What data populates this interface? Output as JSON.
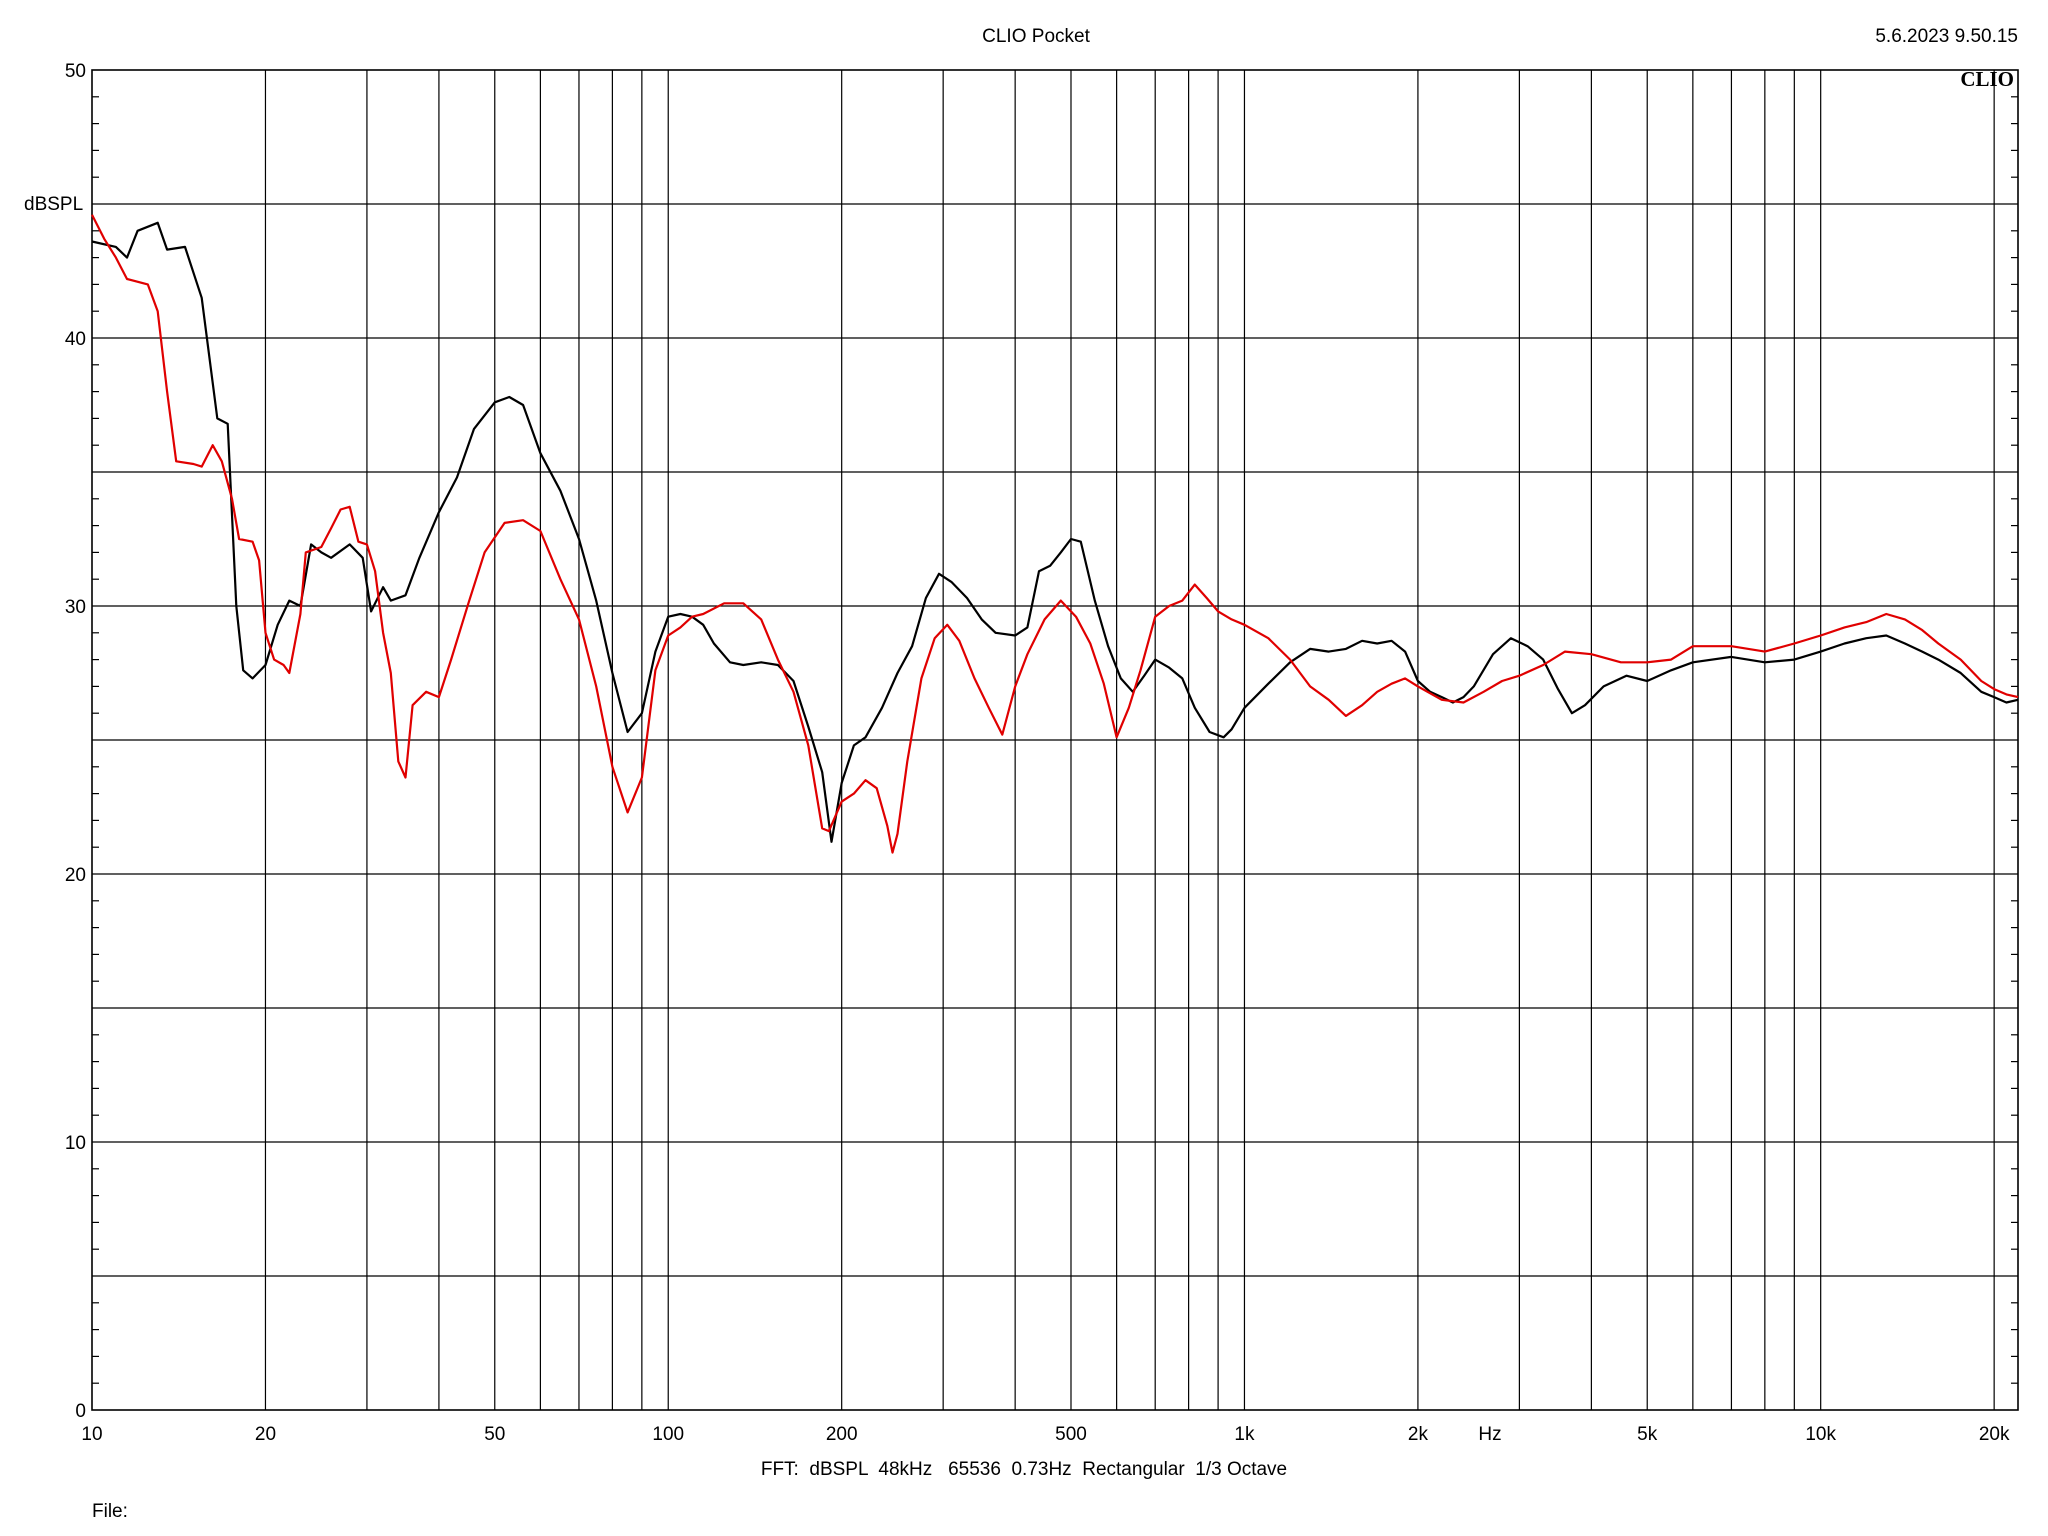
{
  "header": {
    "title": "CLIO Pocket",
    "timestamp": "5.6.2023 9.50.15",
    "logo": "CLIO"
  },
  "footer": {
    "settings": "FFT:  dBSPL  48kHz   65536  0.73Hz  Rectangular  1/3 Octave",
    "file_label": "File:"
  },
  "chart_data": {
    "type": "line",
    "ylabel": "dBSPL",
    "xlabel": "Hz",
    "x_scale": "log",
    "xlim": [
      10,
      22000
    ],
    "ylim": [
      0,
      50
    ],
    "grid": true,
    "x_tick_labels": [
      {
        "value": 10,
        "label": "10"
      },
      {
        "value": 20,
        "label": "20"
      },
      {
        "value": 50,
        "label": "50"
      },
      {
        "value": 100,
        "label": "100"
      },
      {
        "value": 200,
        "label": "200"
      },
      {
        "value": 500,
        "label": "500"
      },
      {
        "value": 1000,
        "label": "1k"
      },
      {
        "value": 2000,
        "label": "2k"
      },
      {
        "value": 5000,
        "label": "5k"
      },
      {
        "value": 10000,
        "label": "10k"
      },
      {
        "value": 20000,
        "label": "20k"
      }
    ],
    "y_tick_labels": [
      {
        "value": 0,
        "label": "0"
      },
      {
        "value": 10,
        "label": "10"
      },
      {
        "value": 20,
        "label": "20"
      },
      {
        "value": 30,
        "label": "30"
      },
      {
        "value": 40,
        "label": "40"
      },
      {
        "value": 50,
        "label": "50"
      }
    ],
    "series": [
      {
        "color": "#000000",
        "points": [
          [
            10,
            43.6
          ],
          [
            11,
            43.4
          ],
          [
            11.5,
            43.0
          ],
          [
            12,
            44.0
          ],
          [
            13,
            44.3
          ],
          [
            13.5,
            43.3
          ],
          [
            14.5,
            43.4
          ],
          [
            15.5,
            41.5
          ],
          [
            16.5,
            37.0
          ],
          [
            17.2,
            36.8
          ],
          [
            17.8,
            30.0
          ],
          [
            18.3,
            27.6
          ],
          [
            19,
            27.3
          ],
          [
            20,
            27.8
          ],
          [
            21,
            29.3
          ],
          [
            22,
            30.2
          ],
          [
            23,
            30.0
          ],
          [
            24,
            32.3
          ],
          [
            25,
            32.0
          ],
          [
            26,
            31.8
          ],
          [
            28,
            32.3
          ],
          [
            29.5,
            31.8
          ],
          [
            30.5,
            29.8
          ],
          [
            32,
            30.7
          ],
          [
            33,
            30.2
          ],
          [
            35,
            30.4
          ],
          [
            37,
            31.8
          ],
          [
            40,
            33.5
          ],
          [
            43,
            34.8
          ],
          [
            46,
            36.6
          ],
          [
            50,
            37.6
          ],
          [
            53,
            37.8
          ],
          [
            56,
            37.5
          ],
          [
            60,
            35.7
          ],
          [
            65,
            34.3
          ],
          [
            70,
            32.5
          ],
          [
            75,
            30.2
          ],
          [
            80,
            27.5
          ],
          [
            85,
            25.3
          ],
          [
            90,
            26.0
          ],
          [
            95,
            28.3
          ],
          [
            100,
            29.6
          ],
          [
            105,
            29.7
          ],
          [
            110,
            29.6
          ],
          [
            115,
            29.3
          ],
          [
            120,
            28.6
          ],
          [
            128,
            27.9
          ],
          [
            135,
            27.8
          ],
          [
            145,
            27.9
          ],
          [
            155,
            27.8
          ],
          [
            165,
            27.2
          ],
          [
            175,
            25.5
          ],
          [
            185,
            23.8
          ],
          [
            192,
            21.2
          ],
          [
            200,
            23.4
          ],
          [
            210,
            24.8
          ],
          [
            220,
            25.1
          ],
          [
            235,
            26.2
          ],
          [
            250,
            27.5
          ],
          [
            265,
            28.5
          ],
          [
            280,
            30.3
          ],
          [
            295,
            31.2
          ],
          [
            310,
            30.9
          ],
          [
            330,
            30.3
          ],
          [
            350,
            29.5
          ],
          [
            370,
            29.0
          ],
          [
            400,
            28.9
          ],
          [
            420,
            29.2
          ],
          [
            440,
            31.3
          ],
          [
            460,
            31.5
          ],
          [
            480,
            32.0
          ],
          [
            500,
            32.5
          ],
          [
            520,
            32.4
          ],
          [
            550,
            30.2
          ],
          [
            580,
            28.5
          ],
          [
            610,
            27.3
          ],
          [
            640,
            26.8
          ],
          [
            670,
            27.4
          ],
          [
            700,
            28.0
          ],
          [
            740,
            27.7
          ],
          [
            780,
            27.3
          ],
          [
            820,
            26.2
          ],
          [
            870,
            25.3
          ],
          [
            920,
            25.1
          ],
          [
            950,
            25.4
          ],
          [
            1000,
            26.2
          ],
          [
            1100,
            27.1
          ],
          [
            1200,
            27.9
          ],
          [
            1300,
            28.4
          ],
          [
            1400,
            28.3
          ],
          [
            1500,
            28.4
          ],
          [
            1600,
            28.7
          ],
          [
            1700,
            28.6
          ],
          [
            1800,
            28.7
          ],
          [
            1900,
            28.3
          ],
          [
            2000,
            27.2
          ],
          [
            2100,
            26.8
          ],
          [
            2200,
            26.6
          ],
          [
            2300,
            26.4
          ],
          [
            2400,
            26.6
          ],
          [
            2500,
            27.0
          ],
          [
            2700,
            28.2
          ],
          [
            2900,
            28.8
          ],
          [
            3100,
            28.5
          ],
          [
            3300,
            28.0
          ],
          [
            3500,
            26.9
          ],
          [
            3700,
            26.0
          ],
          [
            3900,
            26.3
          ],
          [
            4200,
            27.0
          ],
          [
            4600,
            27.4
          ],
          [
            5000,
            27.2
          ],
          [
            5500,
            27.6
          ],
          [
            6000,
            27.9
          ],
          [
            7000,
            28.1
          ],
          [
            8000,
            27.9
          ],
          [
            9000,
            28.0
          ],
          [
            10000,
            28.3
          ],
          [
            11000,
            28.6
          ],
          [
            12000,
            28.8
          ],
          [
            13000,
            28.9
          ],
          [
            14000,
            28.6
          ],
          [
            15000,
            28.3
          ],
          [
            16000,
            28.0
          ],
          [
            17500,
            27.5
          ],
          [
            19000,
            26.8
          ],
          [
            20000,
            26.6
          ],
          [
            21000,
            26.4
          ],
          [
            22000,
            26.5
          ]
        ]
      },
      {
        "color": "#e00000",
        "points": [
          [
            10,
            44.6
          ],
          [
            10.5,
            43.7
          ],
          [
            11,
            43.0
          ],
          [
            11.5,
            42.2
          ],
          [
            12.5,
            42.0
          ],
          [
            13,
            41.0
          ],
          [
            13.5,
            38.0
          ],
          [
            14,
            35.4
          ],
          [
            15,
            35.3
          ],
          [
            15.5,
            35.2
          ],
          [
            16.2,
            36.0
          ],
          [
            16.8,
            35.4
          ],
          [
            17.5,
            34.0
          ],
          [
            18,
            32.5
          ],
          [
            19,
            32.4
          ],
          [
            19.5,
            31.7
          ],
          [
            20,
            29.0
          ],
          [
            20.7,
            28.0
          ],
          [
            21.5,
            27.8
          ],
          [
            22,
            27.5
          ],
          [
            23,
            29.7
          ],
          [
            23.5,
            32.0
          ],
          [
            25,
            32.2
          ],
          [
            26,
            32.9
          ],
          [
            27,
            33.6
          ],
          [
            28,
            33.7
          ],
          [
            29,
            32.4
          ],
          [
            30,
            32.3
          ],
          [
            31,
            31.3
          ],
          [
            32,
            29.0
          ],
          [
            33,
            27.5
          ],
          [
            34,
            24.2
          ],
          [
            35,
            23.6
          ],
          [
            36,
            26.3
          ],
          [
            38,
            26.8
          ],
          [
            40,
            26.6
          ],
          [
            42,
            28.0
          ],
          [
            45,
            30.1
          ],
          [
            48,
            32.0
          ],
          [
            52,
            33.1
          ],
          [
            56,
            33.2
          ],
          [
            60,
            32.8
          ],
          [
            65,
            31.0
          ],
          [
            70,
            29.5
          ],
          [
            75,
            27.0
          ],
          [
            80,
            24.0
          ],
          [
            85,
            22.3
          ],
          [
            90,
            23.6
          ],
          [
            95,
            27.6
          ],
          [
            100,
            28.9
          ],
          [
            105,
            29.2
          ],
          [
            110,
            29.6
          ],
          [
            115,
            29.7
          ],
          [
            125,
            30.1
          ],
          [
            135,
            30.1
          ],
          [
            145,
            29.5
          ],
          [
            155,
            28.0
          ],
          [
            165,
            26.8
          ],
          [
            175,
            24.8
          ],
          [
            185,
            21.7
          ],
          [
            190,
            21.6
          ],
          [
            200,
            22.7
          ],
          [
            210,
            23.0
          ],
          [
            220,
            23.5
          ],
          [
            230,
            23.2
          ],
          [
            240,
            21.8
          ],
          [
            245,
            20.8
          ],
          [
            250,
            21.5
          ],
          [
            260,
            24.2
          ],
          [
            275,
            27.3
          ],
          [
            290,
            28.8
          ],
          [
            305,
            29.3
          ],
          [
            320,
            28.7
          ],
          [
            340,
            27.3
          ],
          [
            360,
            26.2
          ],
          [
            380,
            25.2
          ],
          [
            400,
            27.0
          ],
          [
            420,
            28.2
          ],
          [
            450,
            29.5
          ],
          [
            480,
            30.2
          ],
          [
            510,
            29.6
          ],
          [
            540,
            28.6
          ],
          [
            570,
            27.1
          ],
          [
            600,
            25.1
          ],
          [
            630,
            26.2
          ],
          [
            660,
            27.6
          ],
          [
            700,
            29.6
          ],
          [
            740,
            30.0
          ],
          [
            780,
            30.2
          ],
          [
            820,
            30.8
          ],
          [
            860,
            30.3
          ],
          [
            900,
            29.8
          ],
          [
            950,
            29.5
          ],
          [
            1000,
            29.3
          ],
          [
            1100,
            28.8
          ],
          [
            1200,
            28.0
          ],
          [
            1300,
            27.0
          ],
          [
            1400,
            26.5
          ],
          [
            1500,
            25.9
          ],
          [
            1600,
            26.3
          ],
          [
            1700,
            26.8
          ],
          [
            1800,
            27.1
          ],
          [
            1900,
            27.3
          ],
          [
            2000,
            27.0
          ],
          [
            2200,
            26.5
          ],
          [
            2400,
            26.4
          ],
          [
            2600,
            26.8
          ],
          [
            2800,
            27.2
          ],
          [
            3000,
            27.4
          ],
          [
            3300,
            27.8
          ],
          [
            3600,
            28.3
          ],
          [
            4000,
            28.2
          ],
          [
            4500,
            27.9
          ],
          [
            5000,
            27.9
          ],
          [
            5500,
            28.0
          ],
          [
            6000,
            28.5
          ],
          [
            7000,
            28.5
          ],
          [
            8000,
            28.3
          ],
          [
            9000,
            28.6
          ],
          [
            10000,
            28.9
          ],
          [
            11000,
            29.2
          ],
          [
            12000,
            29.4
          ],
          [
            13000,
            29.7
          ],
          [
            14000,
            29.5
          ],
          [
            15000,
            29.1
          ],
          [
            16000,
            28.6
          ],
          [
            17500,
            28.0
          ],
          [
            19000,
            27.2
          ],
          [
            20000,
            26.9
          ],
          [
            21000,
            26.7
          ],
          [
            22000,
            26.6
          ]
        ]
      }
    ]
  }
}
